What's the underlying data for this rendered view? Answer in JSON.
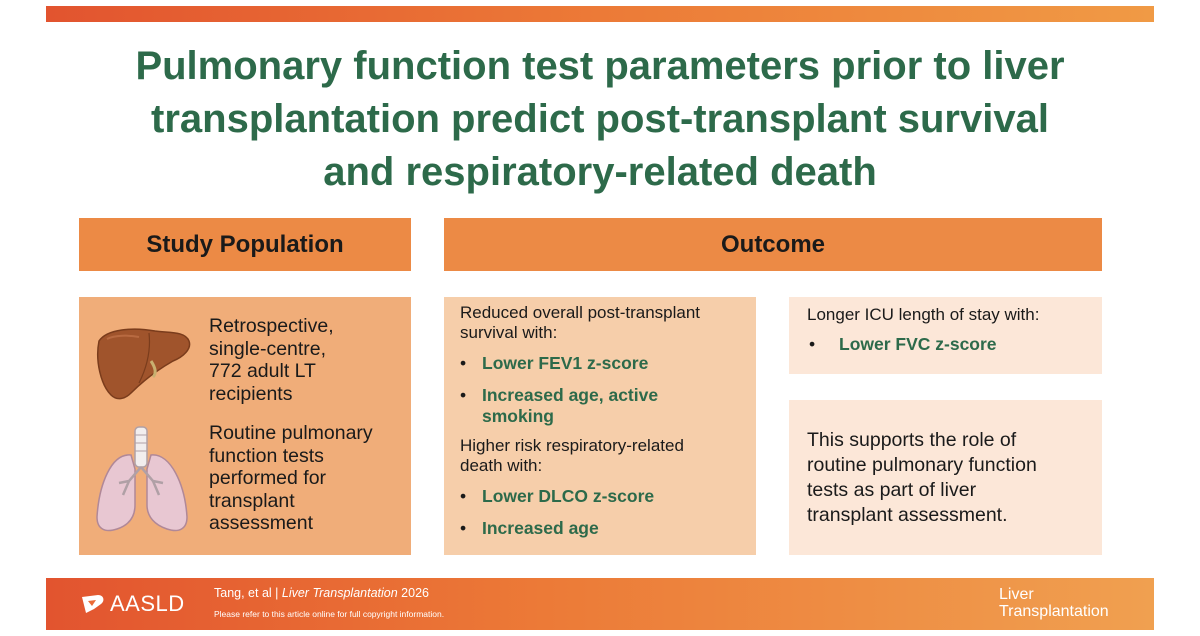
{
  "title": {
    "line1": "Pulmonary function test parameters prior to liver",
    "line2": "transplantation predict post-transplant survival",
    "line3": "and respiratory-related death"
  },
  "headers": {
    "population": "Study Population",
    "outcome": "Outcome"
  },
  "population": {
    "t1": [
      "Retrospective,",
      "single-centre,",
      "772 adult LT",
      "recipients"
    ],
    "t2": [
      "Routine pulmonary",
      "function tests",
      "performed for",
      "transplant",
      "assessment"
    ]
  },
  "survival": {
    "intro": [
      "Reduced overall post-transplant",
      "survival with:"
    ],
    "bullet1": "Lower FEV1 z-score",
    "bullet2": [
      "Increased age, active",
      "smoking"
    ]
  },
  "respiratory": {
    "intro": [
      "Higher risk respiratory-related",
      "death with:"
    ],
    "bullet1": "Lower DLCO z-score",
    "bullet2": "Increased age"
  },
  "icu": {
    "label": "Longer ICU length of stay with:",
    "bullet": "Lower FVC z-score"
  },
  "support": [
    "This supports the role of",
    "routine pulmonary function",
    "tests as part of liver",
    "transplant assessment."
  ],
  "footer": {
    "logo_text": "AASLD",
    "cite_authors": "Tang, et al  |  ",
    "cite_journal": "Liver Transplantation",
    "cite_year": " 2026",
    "copyright": "Please refer to this article online for full copyright information.",
    "journal_logo": [
      "Liver",
      "Transplantation"
    ]
  },
  "bullet_glyph": "•",
  "colors": {
    "title_green": "#2d6a4a",
    "header_orange": "#ec8a45",
    "population_panel": "#f0ad79",
    "outcome_panel": "#f6ceaa",
    "light_panel": "#fce7d8"
  },
  "icons": [
    "liver-icon",
    "lungs-icon",
    "aasld-logo-icon"
  ]
}
